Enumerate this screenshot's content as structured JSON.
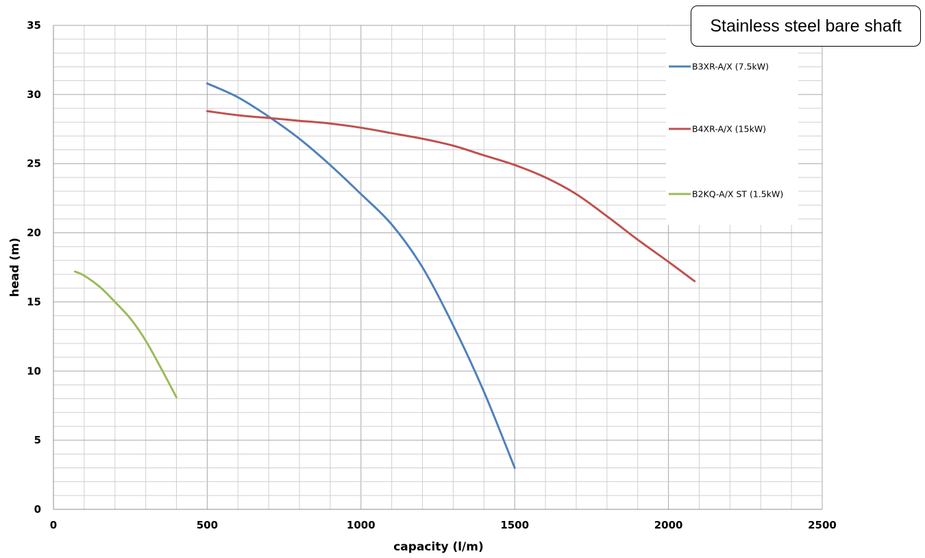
{
  "chart_data": {
    "type": "line",
    "title": "",
    "xlabel": "capacity (l/m)",
    "ylabel": "head (m)",
    "xlim": [
      0,
      2500
    ],
    "ylim": [
      0,
      35
    ],
    "x_ticks": [
      "0",
      "500",
      "1000",
      "1500",
      "2000",
      "2500"
    ],
    "y_ticks": [
      "0",
      "5",
      "10",
      "15",
      "20",
      "25",
      "30",
      "35"
    ],
    "grid": true,
    "legend_position": "top-right",
    "annotation": "Stainless steel bare shaft",
    "series": [
      {
        "name": "B3XR-A/X (7.5kW)",
        "color": "#4f81bd",
        "points": [
          [
            500,
            30.8
          ],
          [
            600,
            29.8
          ],
          [
            700,
            28.4
          ],
          [
            800,
            26.8
          ],
          [
            900,
            24.9
          ],
          [
            1000,
            22.8
          ],
          [
            1100,
            20.6
          ],
          [
            1200,
            17.5
          ],
          [
            1300,
            13.3
          ],
          [
            1400,
            8.5
          ],
          [
            1500,
            3.0
          ]
        ]
      },
      {
        "name": "B4XR-A/X (15kW)",
        "color": "#c0504d",
        "points": [
          [
            500,
            28.8
          ],
          [
            600,
            28.5
          ],
          [
            700,
            28.3
          ],
          [
            800,
            28.1
          ],
          [
            900,
            27.9
          ],
          [
            1000,
            27.6
          ],
          [
            1100,
            27.2
          ],
          [
            1200,
            26.8
          ],
          [
            1300,
            26.3
          ],
          [
            1400,
            25.6
          ],
          [
            1500,
            24.9
          ],
          [
            1600,
            24.0
          ],
          [
            1700,
            22.8
          ],
          [
            1800,
            21.2
          ],
          [
            1900,
            19.5
          ],
          [
            2000,
            17.9
          ],
          [
            2085,
            16.5
          ]
        ]
      },
      {
        "name": "B2KQ-A/X ST (1.5kW)",
        "color": "#9bbb59",
        "points": [
          [
            70,
            17.2
          ],
          [
            100,
            16.9
          ],
          [
            150,
            16.1
          ],
          [
            200,
            15.0
          ],
          [
            250,
            13.8
          ],
          [
            300,
            12.2
          ],
          [
            350,
            10.2
          ],
          [
            400,
            8.1
          ]
        ]
      }
    ]
  }
}
